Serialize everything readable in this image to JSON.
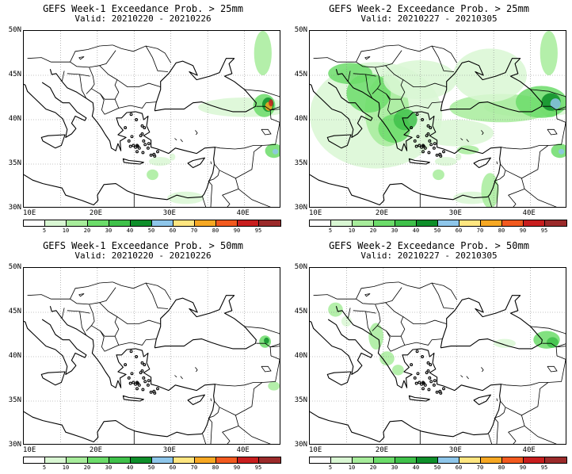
{
  "panels": [
    {
      "title": "GEFS Week-1 Exceedance Prob. > 25mm",
      "valid": "Valid: 20210220 - 20210226",
      "intensity": 1
    },
    {
      "title": "GEFS Week-2 Exceedance Prob. > 25mm",
      "valid": "Valid: 20210227 - 20210305",
      "intensity": 3
    },
    {
      "title": "GEFS Week-1 Exceedance Prob. > 50mm",
      "valid": "Valid: 20210220 - 20210226",
      "intensity": 0
    },
    {
      "title": "GEFS Week-2 Exceedance Prob. > 50mm",
      "valid": "Valid: 20210227 - 20210305",
      "intensity": 2
    }
  ],
  "lat_labels": [
    "50N",
    "45N",
    "40N",
    "35N",
    "30N"
  ],
  "lon_labels": [
    "10E",
    "20E",
    "30E",
    "40E"
  ],
  "colorbar": {
    "ticks": [
      "5",
      "10",
      "20",
      "30",
      "40",
      "50",
      "60",
      "70",
      "80",
      "90",
      "95"
    ],
    "colors": [
      "#ffffff",
      "#d9f7d3",
      "#a7ec9b",
      "#6cdc6a",
      "#3fc14a",
      "#0e8f2a",
      "#8ec6ea",
      "#ffe680",
      "#f7a823",
      "#f25a1f",
      "#c81e1e",
      "#9b2a2a"
    ]
  }
}
